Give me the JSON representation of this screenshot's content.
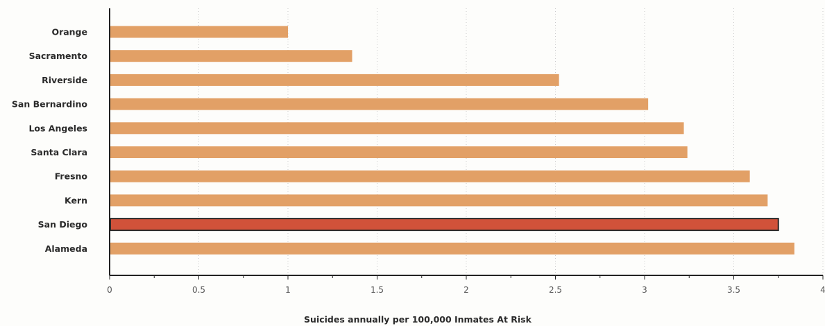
{
  "chart_data": {
    "type": "bar",
    "orientation": "horizontal",
    "categories": [
      "Orange",
      "Sacramento",
      "Riverside",
      "San Bernardino",
      "Los Angeles",
      "Santa Clara",
      "Fresno",
      "Kern",
      "San Diego",
      "Alameda"
    ],
    "values": [
      1.0,
      1.36,
      2.52,
      3.02,
      3.22,
      3.24,
      3.59,
      3.69,
      3.75,
      3.84
    ],
    "highlight": "San Diego",
    "xlabel": "Suicides annually per 100,000 Inmates At Risk",
    "ylabel": "",
    "xlim": [
      0,
      4
    ],
    "xticks": [
      "0",
      "0.5",
      "1",
      "1.5",
      "2",
      "2.5",
      "3",
      "3.5",
      "4"
    ],
    "grid": "vertical dotted",
    "colors": {
      "bar": "#e2a066",
      "highlight_bar": "#d1523a",
      "highlight_border": "#2a2a2a",
      "axis": "#222222"
    }
  }
}
